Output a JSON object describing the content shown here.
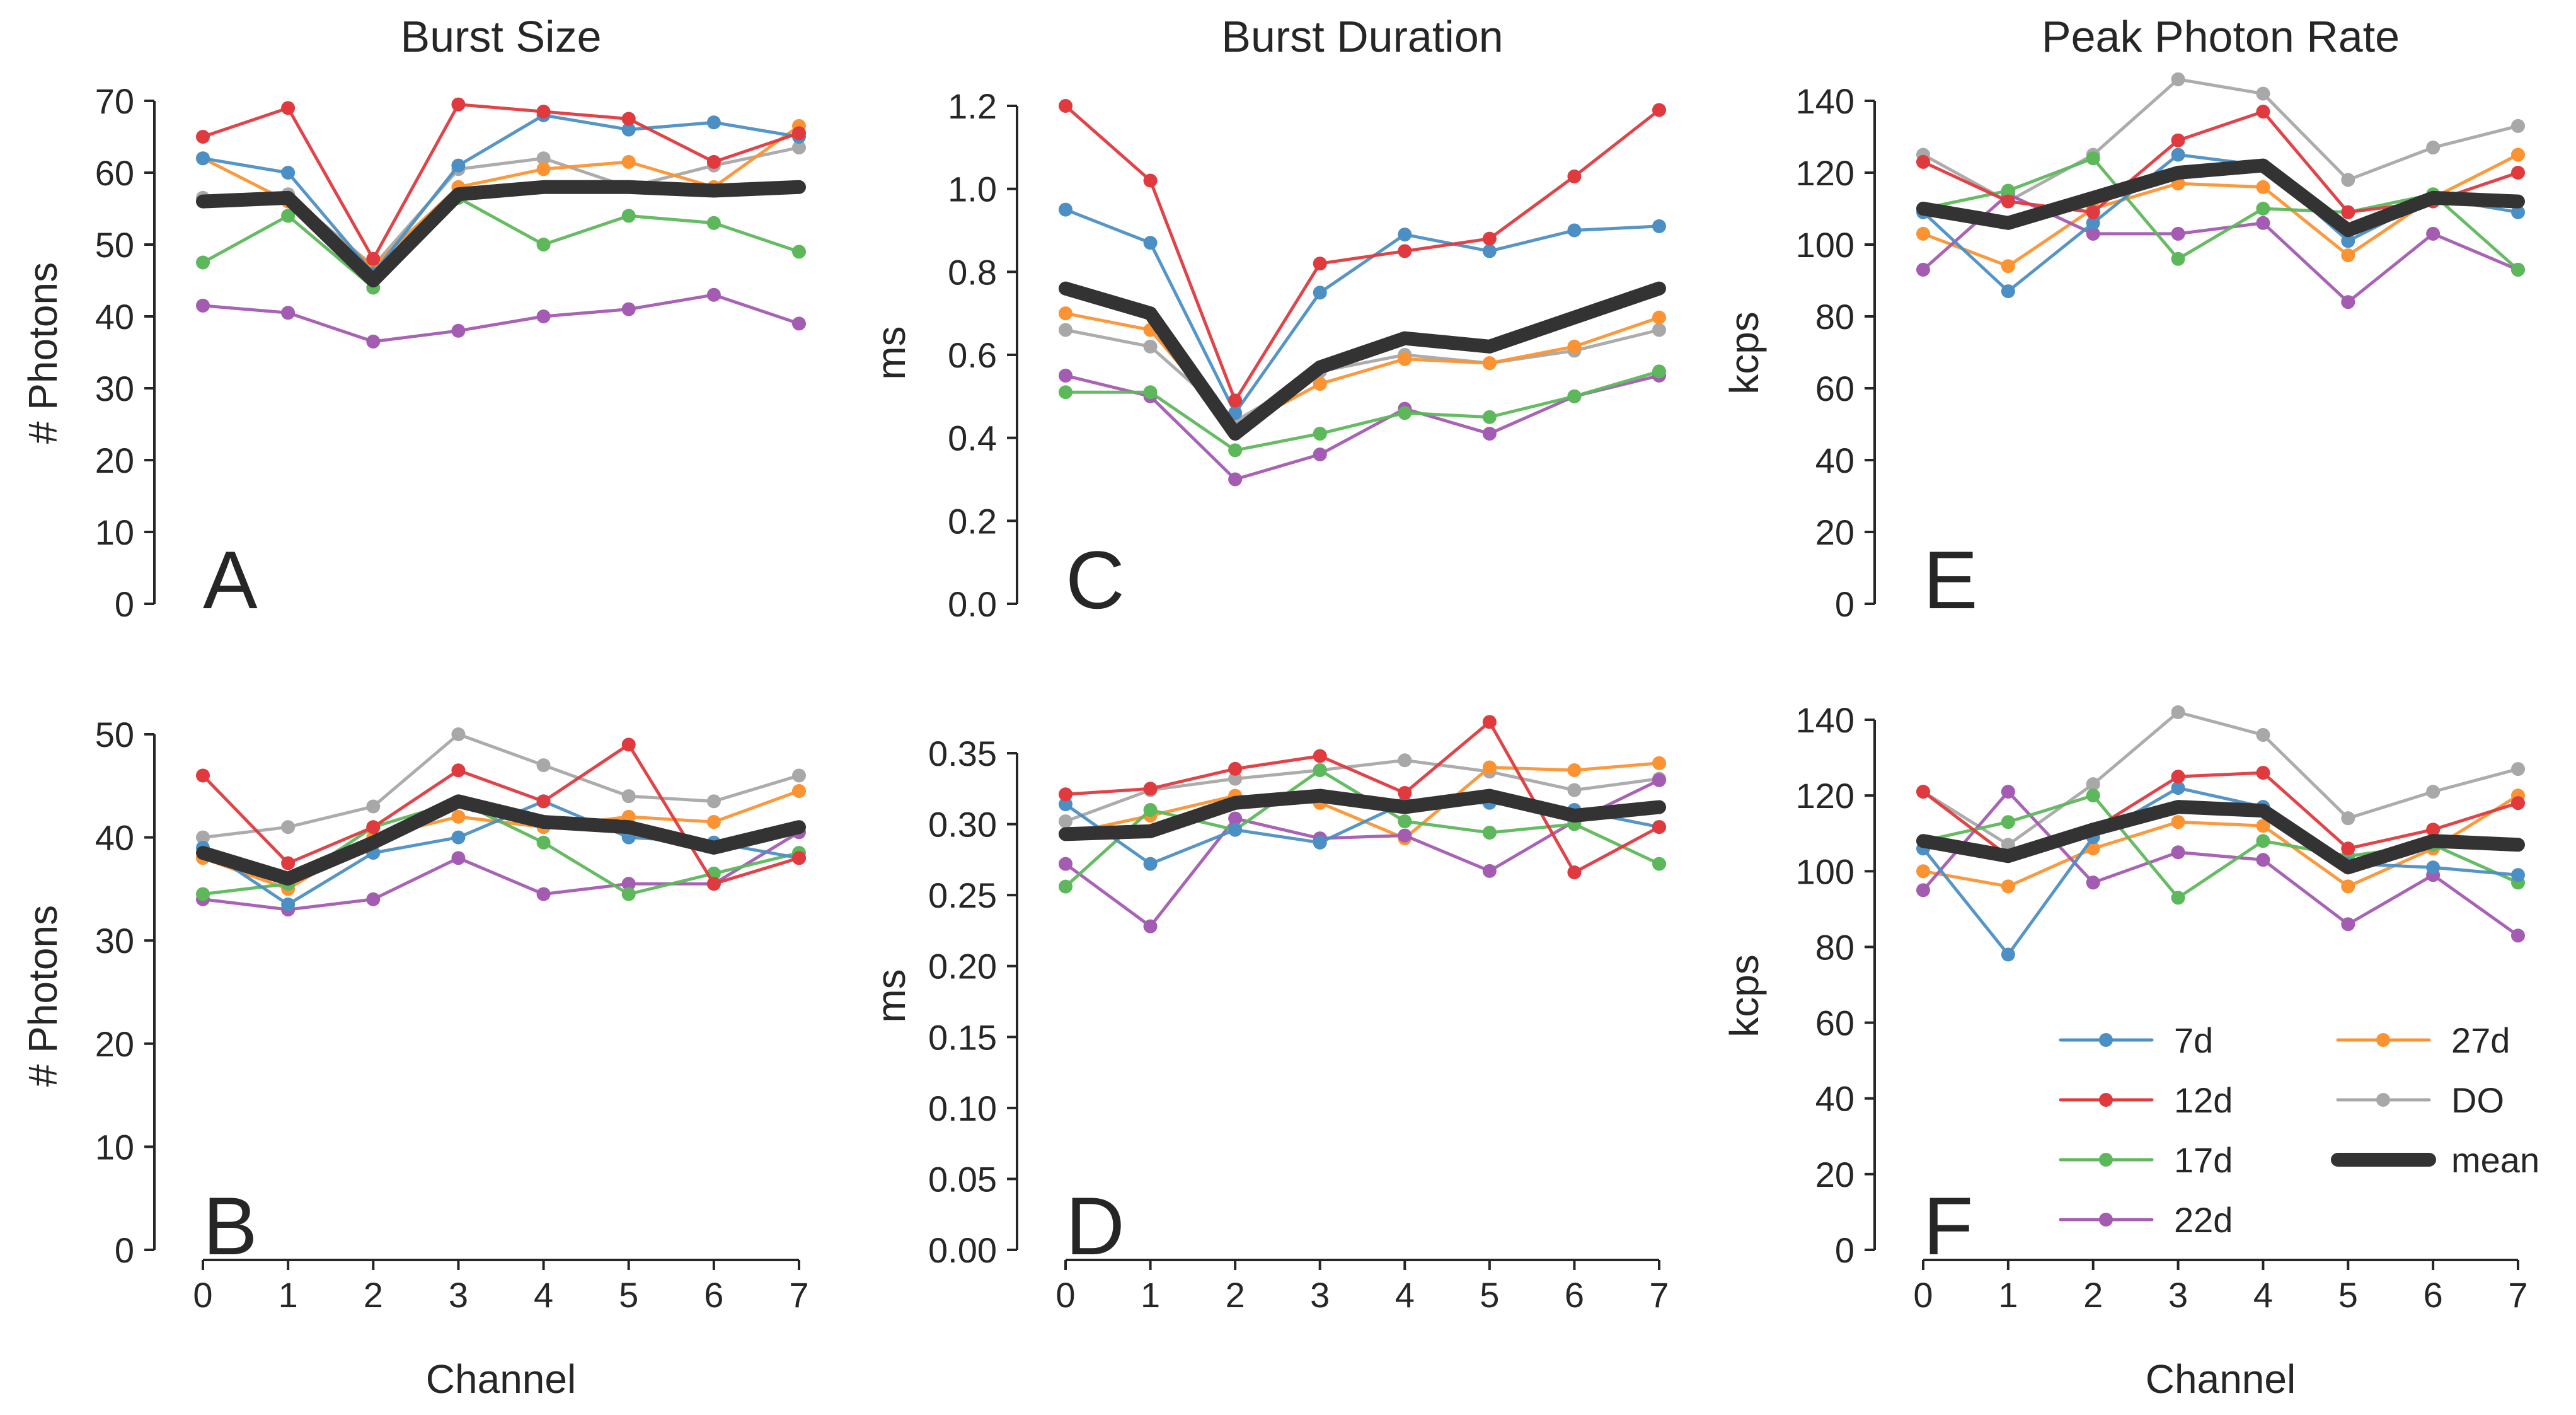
{
  "colors": {
    "7d": "#4c8fc4",
    "12d": "#e0393e",
    "17d": "#5db85b",
    "22d": "#a45bb2",
    "27d": "#fb9332",
    "DO": "#a8a8a8",
    "mean": "#333333"
  },
  "legend": {
    "entries": [
      "7d",
      "12d",
      "17d",
      "22d",
      "27d",
      "DO",
      "mean"
    ]
  },
  "chart_data": [
    {
      "panel": "A",
      "type": "line",
      "title": "Burst Size",
      "xlabel": "",
      "ylabel": "# Photons",
      "x": [
        0,
        1,
        2,
        3,
        4,
        5,
        6,
        7
      ],
      "xticks": [
        "0",
        "1",
        "2",
        "3",
        "4",
        "5",
        "6",
        "7"
      ],
      "ylim": [
        0,
        70
      ],
      "yticks": [
        "0",
        "10",
        "20",
        "30",
        "40",
        "50",
        "60",
        "70"
      ],
      "series": [
        {
          "name": "7d",
          "values": [
            62,
            60,
            46,
            61,
            68,
            66,
            67,
            65
          ]
        },
        {
          "name": "12d",
          "values": [
            65,
            69,
            48,
            69.5,
            68.5,
            67.5,
            61.5,
            65.5
          ]
        },
        {
          "name": "17d",
          "values": [
            47.5,
            54,
            44,
            56.5,
            50,
            54,
            53,
            49
          ]
        },
        {
          "name": "22d",
          "values": [
            41.5,
            40.5,
            36.5,
            38,
            40,
            41,
            43,
            39
          ]
        },
        {
          "name": "27d",
          "values": [
            62,
            56,
            47,
            58,
            60.5,
            61.5,
            58,
            66.5
          ]
        },
        {
          "name": "DO",
          "values": [
            56.5,
            57,
            47,
            60.5,
            62,
            58,
            61,
            63.5
          ]
        },
        {
          "name": "mean",
          "values": [
            56,
            56.5,
            45,
            57,
            58,
            58,
            57.5,
            58
          ]
        }
      ]
    },
    {
      "panel": "C",
      "type": "line",
      "title": "Burst Duration",
      "xlabel": "",
      "ylabel": "ms",
      "x": [
        0,
        1,
        2,
        3,
        4,
        5,
        6,
        7
      ],
      "xticks": [
        "0",
        "1",
        "2",
        "3",
        "4",
        "5",
        "6",
        "7"
      ],
      "ylim": [
        0,
        1.2
      ],
      "yticks": [
        "0.0",
        "0.2",
        "0.4",
        "0.6",
        "0.8",
        "1.0",
        "1.2"
      ],
      "series": [
        {
          "name": "7d",
          "values": [
            0.95,
            0.87,
            0.46,
            0.75,
            0.89,
            0.85,
            0.9,
            0.91
          ]
        },
        {
          "name": "12d",
          "values": [
            1.2,
            1.02,
            0.49,
            0.82,
            0.85,
            0.88,
            1.03,
            1.19
          ]
        },
        {
          "name": "17d",
          "values": [
            0.51,
            0.51,
            0.37,
            0.41,
            0.46,
            0.45,
            0.5,
            0.56
          ]
        },
        {
          "name": "22d",
          "values": [
            0.55,
            0.5,
            0.3,
            0.36,
            0.47,
            0.41,
            0.5,
            0.55
          ]
        },
        {
          "name": "27d",
          "values": [
            0.7,
            0.66,
            0.42,
            0.53,
            0.59,
            0.58,
            0.62,
            0.69
          ]
        },
        {
          "name": "DO",
          "values": [
            0.66,
            0.62,
            0.44,
            0.56,
            0.6,
            0.58,
            0.61,
            0.66
          ]
        },
        {
          "name": "mean",
          "values": [
            0.76,
            0.7,
            0.41,
            0.57,
            0.64,
            0.62,
            0.69,
            0.76
          ]
        }
      ]
    },
    {
      "panel": "E",
      "type": "line",
      "title": "Peak Photon Rate",
      "xlabel": "",
      "ylabel": "kcps",
      "x": [
        0,
        1,
        2,
        3,
        4,
        5,
        6,
        7
      ],
      "xticks": [
        "0",
        "1",
        "2",
        "3",
        "4",
        "5",
        "6",
        "7"
      ],
      "ylim": [
        0,
        145
      ],
      "yticks": [
        "0",
        "20",
        "40",
        "60",
        "80",
        "100",
        "120",
        "140"
      ],
      "series": [
        {
          "name": "7d",
          "values": [
            109,
            87,
            106,
            125,
            122,
            101,
            113,
            109
          ]
        },
        {
          "name": "12d",
          "values": [
            123,
            112,
            109,
            129,
            137,
            109,
            112,
            120
          ]
        },
        {
          "name": "17d",
          "values": [
            110,
            115,
            124,
            96,
            110,
            109,
            114,
            93
          ]
        },
        {
          "name": "22d",
          "values": [
            93,
            114,
            103,
            103,
            106,
            84,
            103,
            93
          ]
        },
        {
          "name": "27d",
          "values": [
            103,
            94,
            110,
            117,
            116,
            97,
            113,
            125
          ]
        },
        {
          "name": "DO",
          "values": [
            125,
            112,
            125,
            146,
            142,
            118,
            127,
            133
          ]
        },
        {
          "name": "mean",
          "values": [
            110,
            106,
            113,
            120,
            122,
            104,
            113,
            112
          ]
        }
      ]
    },
    {
      "panel": "B",
      "type": "line",
      "title": "",
      "xlabel": "Channel",
      "ylabel": "# Photons",
      "x": [
        0,
        1,
        2,
        3,
        4,
        5,
        6,
        7
      ],
      "xticks": [
        "0",
        "1",
        "2",
        "3",
        "4",
        "5",
        "6",
        "7"
      ],
      "ylim": [
        0,
        50
      ],
      "yticks": [
        "0",
        "10",
        "20",
        "30",
        "40",
        "50"
      ],
      "series": [
        {
          "name": "7d",
          "values": [
            39,
            33.5,
            38.5,
            40,
            43.5,
            40,
            39.5,
            38
          ]
        },
        {
          "name": "12d",
          "values": [
            46,
            37.5,
            41,
            46.5,
            43.5,
            49,
            35.5,
            38
          ]
        },
        {
          "name": "17d",
          "values": [
            34.5,
            35.5,
            41,
            43.5,
            39.5,
            34.5,
            36.5,
            38.5
          ]
        },
        {
          "name": "22d",
          "values": [
            34,
            33,
            34,
            38,
            34.5,
            35.5,
            35.5,
            40.5
          ]
        },
        {
          "name": "27d",
          "values": [
            38,
            35,
            40,
            42,
            41,
            42,
            41.5,
            44.5
          ]
        },
        {
          "name": "DO",
          "values": [
            40,
            41,
            43,
            50,
            47,
            44,
            43.5,
            46
          ]
        },
        {
          "name": "mean",
          "values": [
            38.5,
            36,
            39.5,
            43.5,
            41.5,
            41,
            39,
            41
          ]
        }
      ]
    },
    {
      "panel": "D",
      "type": "line",
      "title": "",
      "xlabel": "",
      "ylabel": "ms",
      "x": [
        0,
        1,
        2,
        3,
        4,
        5,
        6,
        7
      ],
      "xticks": [
        "0",
        "1",
        "2",
        "3",
        "4",
        "5",
        "6",
        "7"
      ],
      "ylim": [
        0,
        0.35
      ],
      "yticks": [
        "0.00",
        "0.05",
        "0.10",
        "0.15",
        "0.20",
        "0.25",
        "0.30",
        "0.35"
      ],
      "series": [
        {
          "name": "7d",
          "values": [
            0.314,
            0.272,
            0.296,
            0.287,
            0.315,
            0.315,
            0.31,
            0.298
          ]
        },
        {
          "name": "12d",
          "values": [
            0.321,
            0.325,
            0.339,
            0.348,
            0.322,
            0.372,
            0.266,
            0.298
          ]
        },
        {
          "name": "17d",
          "values": [
            0.256,
            0.31,
            0.296,
            0.338,
            0.302,
            0.294,
            0.3,
            0.272
          ]
        },
        {
          "name": "22d",
          "values": [
            0.272,
            0.228,
            0.304,
            0.29,
            0.292,
            0.267,
            0.302,
            0.331
          ]
        },
        {
          "name": "27d",
          "values": [
            0.293,
            0.306,
            0.32,
            0.315,
            0.29,
            0.34,
            0.338,
            0.343
          ]
        },
        {
          "name": "DO",
          "values": [
            0.302,
            0.324,
            0.332,
            0.338,
            0.345,
            0.337,
            0.324,
            0.332
          ]
        },
        {
          "name": "mean",
          "values": [
            0.293,
            0.295,
            0.315,
            0.32,
            0.312,
            0.32,
            0.306,
            0.312
          ]
        }
      ]
    },
    {
      "panel": "F",
      "type": "line",
      "title": "",
      "xlabel": "Channel",
      "ylabel": "kcps",
      "x": [
        0,
        1,
        2,
        3,
        4,
        5,
        6,
        7
      ],
      "xticks": [
        "0",
        "1",
        "2",
        "3",
        "4",
        "5",
        "6",
        "7"
      ],
      "ylim": [
        0,
        145
      ],
      "yticks": [
        "0",
        "20",
        "40",
        "60",
        "80",
        "100",
        "120",
        "140"
      ],
      "series": [
        {
          "name": "7d",
          "values": [
            106,
            78,
            109,
            122,
            117,
            102,
            101,
            99
          ]
        },
        {
          "name": "12d",
          "values": [
            121,
            104,
            111,
            125,
            126,
            106,
            111,
            118
          ]
        },
        {
          "name": "17d",
          "values": [
            108,
            113,
            120,
            93,
            108,
            104,
            107,
            97
          ]
        },
        {
          "name": "22d",
          "values": [
            95,
            121,
            97,
            105,
            103,
            86,
            99,
            83
          ]
        },
        {
          "name": "27d",
          "values": [
            100,
            96,
            106,
            113,
            112,
            96,
            106,
            120
          ]
        },
        {
          "name": "DO",
          "values": [
            121,
            107,
            123,
            142,
            136,
            114,
            121,
            127
          ]
        },
        {
          "name": "mean",
          "values": [
            108,
            104,
            111,
            117,
            116,
            101,
            108,
            107
          ]
        }
      ]
    }
  ]
}
